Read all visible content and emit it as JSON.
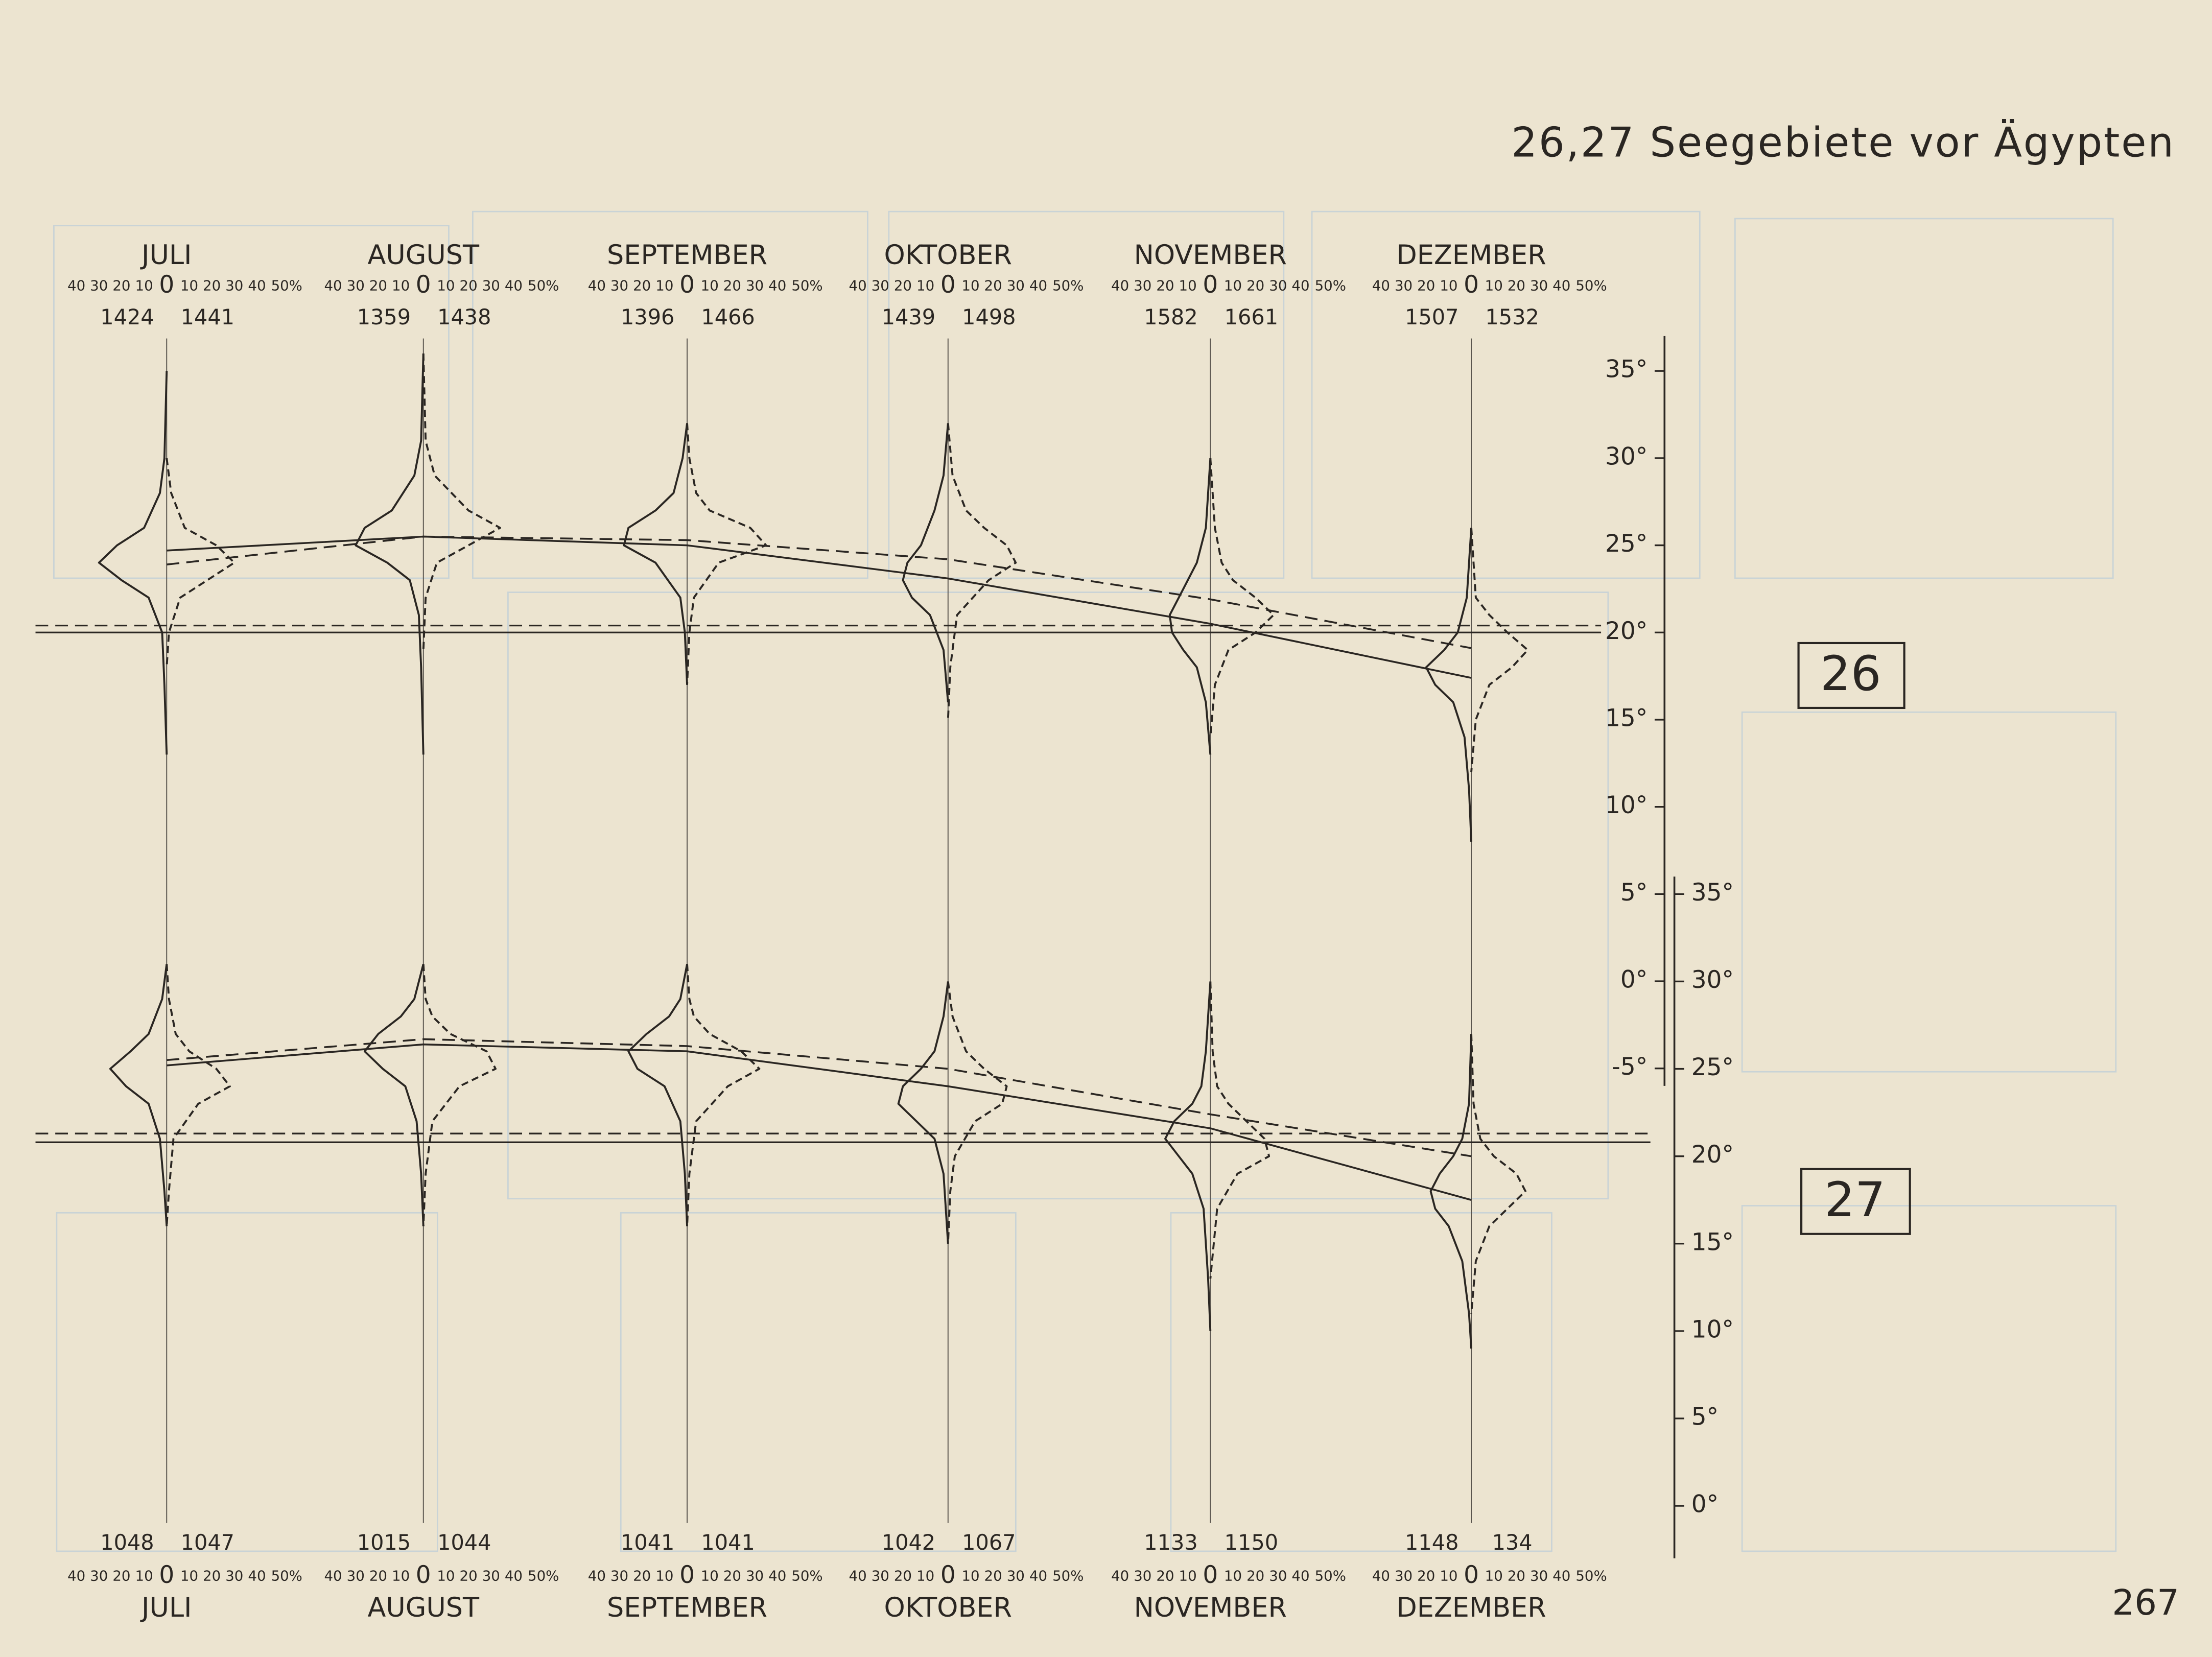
{
  "page_title": "26,27 Seegebiete vor Ägypten",
  "page_number": "267",
  "chart_data": [
    {
      "type": "profile",
      "label": "26",
      "categories": [
        "JULI",
        "AUGUST",
        "SEPTEMBER",
        "OKTOBER",
        "NOVEMBER",
        "DEZEMBER"
      ],
      "counts_left": [
        1424,
        1359,
        1396,
        1439,
        1582,
        1507
      ],
      "counts_right": [
        1441,
        1438,
        1466,
        1498,
        1661,
        1532
      ],
      "left_pct_ticks": [
        40,
        30,
        20,
        10,
        0
      ],
      "right_pct_ticks": [
        10,
        20,
        30,
        40,
        {
          "value": 50,
          "label": "50%"
        }
      ],
      "ylim": [
        -6,
        37
      ],
      "yticks": [
        {
          "value": 35,
          "label": "35°"
        },
        {
          "value": 30,
          "label": "30°"
        },
        {
          "value": 25,
          "label": "25°"
        },
        {
          "value": 20,
          "label": "20°"
        },
        {
          "value": 15,
          "label": "15°"
        },
        {
          "value": 10,
          "label": "10°"
        },
        {
          "value": 5,
          "label": "5°"
        },
        {
          "value": 0,
          "label": "0°"
        },
        {
          "value": -5,
          "label": "-5°"
        }
      ],
      "solid_profiles": [
        {
          "temps": [
            35,
            30,
            28,
            26,
            25,
            24,
            23,
            22,
            20,
            17,
            13
          ],
          "pct": [
            0,
            1,
            3,
            10,
            22,
            30,
            20,
            8,
            2,
            1,
            0
          ]
        },
        {
          "temps": [
            36,
            31,
            29,
            27,
            26,
            25,
            24,
            23,
            21,
            18,
            13
          ],
          "pct": [
            0,
            1,
            4,
            14,
            26,
            30,
            16,
            6,
            2,
            1,
            0
          ]
        },
        {
          "temps": [
            32,
            30,
            28,
            27,
            26,
            25,
            24,
            22,
            20,
            17
          ],
          "pct": [
            0,
            2,
            6,
            14,
            26,
            28,
            14,
            3,
            1,
            0
          ]
        },
        {
          "temps": [
            32,
            29,
            27,
            25,
            24,
            23,
            22,
            21,
            19,
            16
          ],
          "pct": [
            0,
            2,
            6,
            12,
            18,
            20,
            16,
            8,
            2,
            0
          ]
        },
        {
          "temps": [
            30,
            26,
            24,
            23,
            22,
            21,
            20,
            19,
            18,
            16,
            13
          ],
          "pct": [
            0,
            2,
            6,
            10,
            14,
            18,
            17,
            12,
            6,
            2,
            0
          ]
        },
        {
          "temps": [
            26,
            22,
            20,
            19,
            18,
            17,
            16,
            14,
            11,
            8
          ],
          "pct": [
            0,
            2,
            6,
            12,
            20,
            16,
            8,
            3,
            1,
            0
          ]
        }
      ],
      "dashed_profiles": [
        {
          "temps": [
            30,
            28,
            26,
            25,
            24,
            23,
            22,
            20,
            18
          ],
          "pct": [
            0,
            2,
            8,
            22,
            30,
            18,
            6,
            1,
            0
          ]
        },
        {
          "temps": [
            36,
            31,
            29,
            27,
            26,
            25,
            24,
            22,
            19
          ],
          "pct": [
            0,
            1,
            5,
            20,
            34,
            20,
            6,
            1,
            0
          ]
        },
        {
          "temps": [
            32,
            30,
            28,
            27,
            26,
            25,
            24,
            22,
            20,
            17
          ],
          "pct": [
            0,
            1,
            4,
            10,
            28,
            35,
            14,
            3,
            1,
            0
          ]
        },
        {
          "temps": [
            32,
            29,
            27,
            26,
            25,
            24,
            23,
            21,
            18,
            15
          ],
          "pct": [
            0,
            2,
            8,
            16,
            26,
            30,
            18,
            4,
            1,
            0
          ]
        },
        {
          "temps": [
            30,
            26,
            24,
            23,
            22,
            21,
            20,
            19,
            17,
            14
          ],
          "pct": [
            0,
            2,
            5,
            10,
            20,
            28,
            20,
            8,
            2,
            0
          ]
        },
        {
          "temps": [
            26,
            22,
            21,
            20,
            19,
            18,
            17,
            15,
            12
          ],
          "pct": [
            0,
            2,
            8,
            16,
            25,
            18,
            8,
            2,
            0
          ]
        }
      ],
      "solid_mean": [
        24.7,
        25.5,
        25.0,
        23.1,
        20.5,
        17.4
      ],
      "dashed_mean": [
        23.9,
        25.5,
        25.3,
        24.2,
        21.9,
        19.1
      ],
      "solid_ref": 20.0,
      "dashed_ref": 20.4
    },
    {
      "type": "profile",
      "label": "27",
      "categories": [
        "JULI",
        "AUGUST",
        "SEPTEMBER",
        "OKTOBER",
        "NOVEMBER",
        "DEZEMBER"
      ],
      "counts_left": [
        1048,
        1015,
        1041,
        1042,
        1133,
        1148
      ],
      "counts_right": [
        1047,
        1044,
        1041,
        1067,
        1150,
        134
      ],
      "left_pct_ticks": [
        40,
        30,
        20,
        10,
        0
      ],
      "right_pct_ticks": [
        10,
        20,
        30,
        40,
        {
          "value": 50,
          "label": "50%"
        }
      ],
      "ylim": [
        -3,
        36
      ],
      "yticks": [
        {
          "value": 35,
          "label": "35°"
        },
        {
          "value": 30,
          "label": "30°"
        },
        {
          "value": 25,
          "label": "25°"
        },
        {
          "value": 20,
          "label": "20°"
        },
        {
          "value": 15,
          "label": "15°"
        },
        {
          "value": 10,
          "label": "10°"
        },
        {
          "value": 5,
          "label": "5°"
        },
        {
          "value": 0,
          "label": "0°"
        }
      ],
      "solid_profiles": [
        {
          "temps": [
            31,
            29,
            27,
            26,
            25,
            24,
            23,
            21,
            18,
            16
          ],
          "pct": [
            0,
            2,
            8,
            16,
            25,
            18,
            8,
            3,
            1,
            0
          ]
        },
        {
          "temps": [
            31,
            29,
            28,
            27,
            26,
            25,
            24,
            22,
            19,
            16
          ],
          "pct": [
            0,
            4,
            10,
            20,
            26,
            18,
            8,
            3,
            1,
            0
          ]
        },
        {
          "temps": [
            31,
            29,
            28,
            27,
            26,
            25,
            24,
            22,
            19,
            16
          ],
          "pct": [
            0,
            3,
            8,
            18,
            26,
            22,
            10,
            3,
            1,
            0
          ]
        },
        {
          "temps": [
            30,
            28,
            26,
            25,
            24,
            23,
            22,
            21,
            19,
            15
          ],
          "pct": [
            0,
            2,
            6,
            12,
            20,
            22,
            14,
            6,
            2,
            0
          ]
        },
        {
          "temps": [
            30,
            26,
            24,
            23,
            22,
            21,
            20,
            19,
            17,
            13,
            10
          ],
          "pct": [
            0,
            2,
            4,
            8,
            16,
            20,
            14,
            8,
            3,
            1,
            0
          ]
        },
        {
          "temps": [
            27,
            23,
            21,
            20,
            19,
            18,
            17,
            16,
            14,
            11,
            9
          ],
          "pct": [
            0,
            1,
            4,
            8,
            14,
            18,
            16,
            10,
            4,
            1,
            0
          ]
        }
      ],
      "dashed_profiles": [
        {
          "temps": [
            31,
            29,
            27,
            26,
            25,
            24,
            23,
            21,
            18,
            16
          ],
          "pct": [
            0,
            1,
            4,
            10,
            22,
            28,
            14,
            3,
            1,
            0
          ]
        },
        {
          "temps": [
            31,
            29,
            28,
            27,
            26,
            25,
            24,
            22,
            19,
            16
          ],
          "pct": [
            0,
            1,
            4,
            12,
            28,
            32,
            16,
            4,
            1,
            0
          ]
        },
        {
          "temps": [
            31,
            29,
            28,
            27,
            26,
            25,
            24,
            22,
            19,
            16
          ],
          "pct": [
            0,
            1,
            3,
            10,
            24,
            32,
            18,
            4,
            1,
            0
          ]
        },
        {
          "temps": [
            30,
            28,
            26,
            25,
            24,
            23,
            22,
            20,
            18,
            15
          ],
          "pct": [
            0,
            2,
            8,
            16,
            26,
            24,
            12,
            3,
            1,
            0
          ]
        },
        {
          "temps": [
            30,
            26,
            24,
            23,
            22,
            21,
            20,
            19,
            17,
            13
          ],
          "pct": [
            0,
            1,
            3,
            8,
            16,
            24,
            26,
            12,
            3,
            0
          ]
        },
        {
          "temps": [
            27,
            23,
            21,
            20,
            19,
            18,
            17,
            16,
            14,
            11
          ],
          "pct": [
            0,
            1,
            4,
            10,
            20,
            24,
            16,
            8,
            2,
            0
          ]
        }
      ],
      "solid_mean": [
        25.2,
        26.4,
        26.0,
        24.0,
        21.6,
        17.5
      ],
      "dashed_mean": [
        25.5,
        26.7,
        26.3,
        25.0,
        22.4,
        20.0
      ],
      "solid_ref": 20.8,
      "dashed_ref": 21.3
    }
  ]
}
